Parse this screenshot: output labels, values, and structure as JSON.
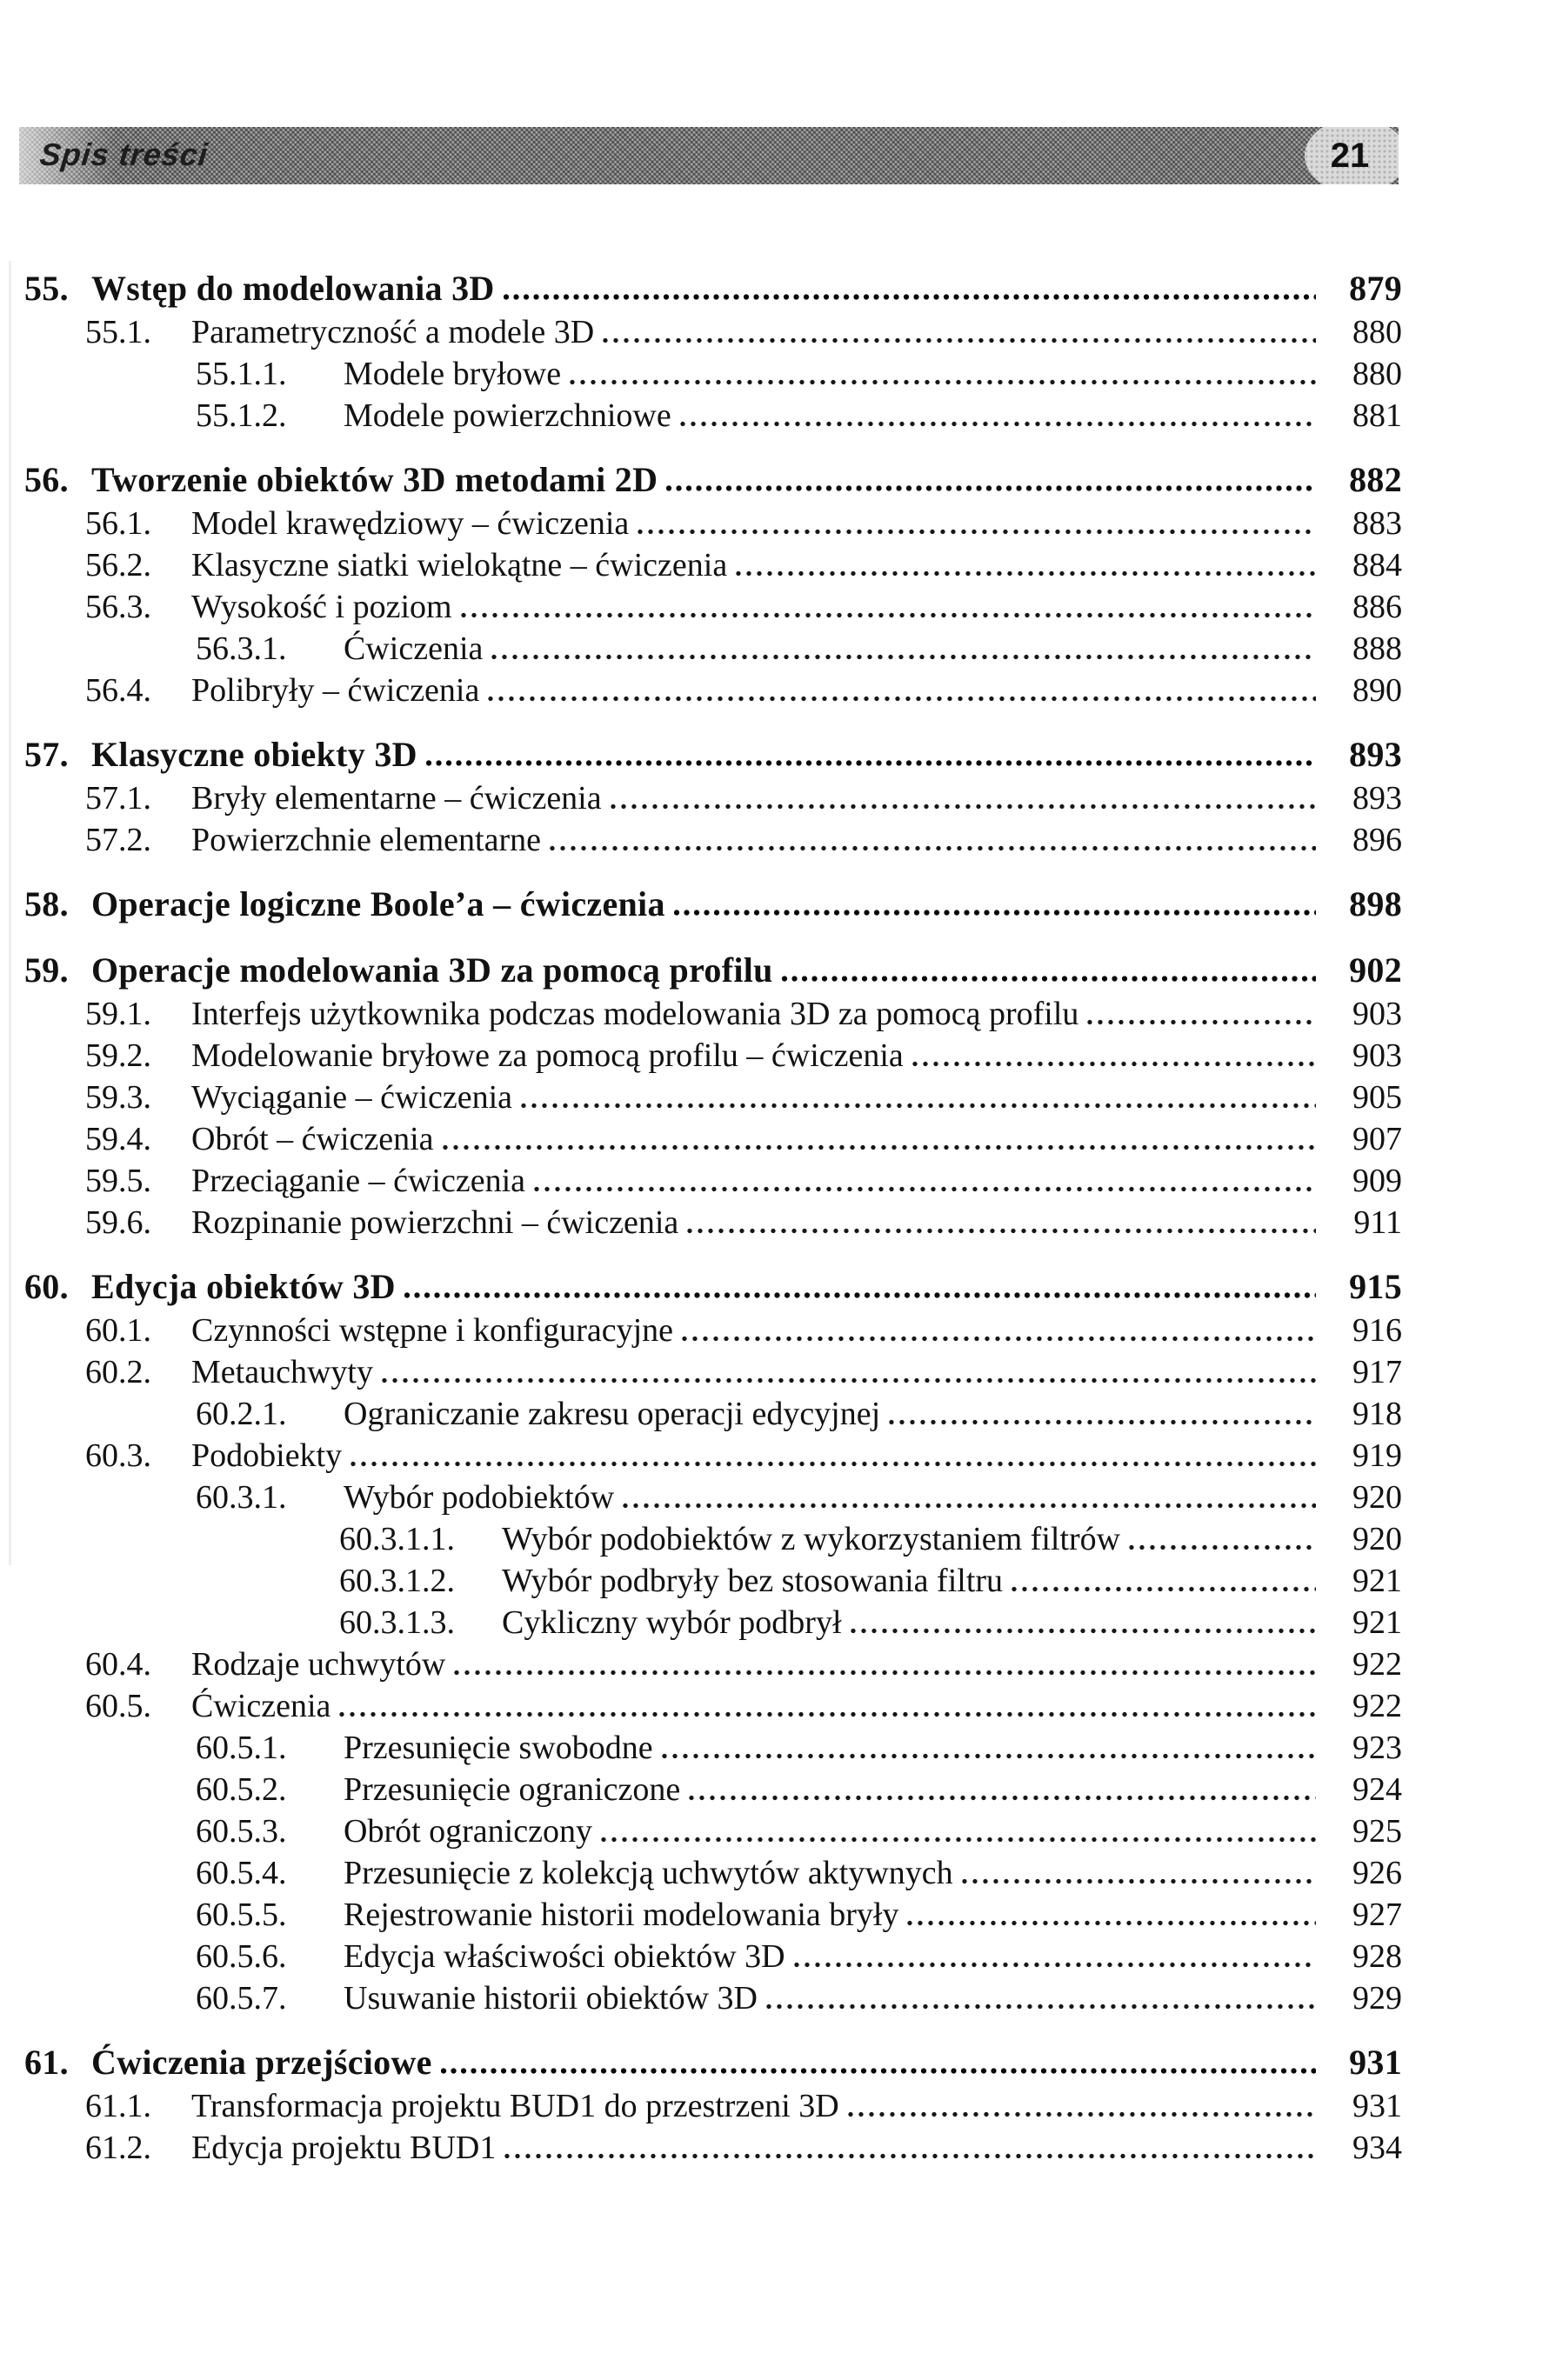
{
  "header": {
    "title": "Spis treści",
    "page_number": "21"
  },
  "toc": {
    "entries": [
      {
        "num": "55.",
        "title": "Wstęp do modelowania 3D",
        "page": "879",
        "level": 1,
        "bold": true
      },
      {
        "num": "55.1.",
        "title": "Parametryczność a modele 3D",
        "page": "880",
        "level": 2,
        "bold": false
      },
      {
        "num": "55.1.1.",
        "title": "Modele bryłowe",
        "page": "880",
        "level": 3,
        "bold": false
      },
      {
        "num": "55.1.2.",
        "title": "Modele powierzchniowe",
        "page": "881",
        "level": 3,
        "bold": false
      },
      {
        "num": "56.",
        "title": "Tworzenie obiektów 3D metodami 2D",
        "page": "882",
        "level": 1,
        "bold": true
      },
      {
        "num": "56.1.",
        "title": "Model krawędziowy – ćwiczenia",
        "page": "883",
        "level": 2,
        "bold": false
      },
      {
        "num": "56.2.",
        "title": "Klasyczne siatki wielokątne – ćwiczenia",
        "page": "884",
        "level": 2,
        "bold": false
      },
      {
        "num": "56.3.",
        "title": "Wysokość i poziom",
        "page": "886",
        "level": 2,
        "bold": false
      },
      {
        "num": "56.3.1.",
        "title": "Ćwiczenia",
        "page": "888",
        "level": 3,
        "bold": false
      },
      {
        "num": "56.4.",
        "title": "Polibryły – ćwiczenia",
        "page": "890",
        "level": 2,
        "bold": false
      },
      {
        "num": "57.",
        "title": "Klasyczne obiekty 3D",
        "page": "893",
        "level": 1,
        "bold": true
      },
      {
        "num": "57.1.",
        "title": "Bryły elementarne – ćwiczenia",
        "page": "893",
        "level": 2,
        "bold": false
      },
      {
        "num": "57.2.",
        "title": "Powierzchnie elementarne",
        "page": "896",
        "level": 2,
        "bold": false
      },
      {
        "num": "58.",
        "title": "Operacje logiczne Boole’a – ćwiczenia",
        "page": "898",
        "level": 1,
        "bold": true
      },
      {
        "num": "59.",
        "title": "Operacje modelowania 3D za pomocą profilu",
        "page": "902",
        "level": 1,
        "bold": true
      },
      {
        "num": "59.1.",
        "title": "Interfejs użytkownika podczas modelowania 3D za pomocą profilu",
        "page": "903",
        "level": 2,
        "bold": false
      },
      {
        "num": "59.2.",
        "title": "Modelowanie bryłowe za pomocą profilu – ćwiczenia",
        "page": "903",
        "level": 2,
        "bold": false
      },
      {
        "num": "59.3.",
        "title": "Wyciąganie – ćwiczenia",
        "page": "905",
        "level": 2,
        "bold": false
      },
      {
        "num": "59.4.",
        "title": "Obrót – ćwiczenia",
        "page": "907",
        "level": 2,
        "bold": false
      },
      {
        "num": "59.5.",
        "title": "Przeciąganie – ćwiczenia",
        "page": "909",
        "level": 2,
        "bold": false
      },
      {
        "num": "59.6.",
        "title": "Rozpinanie powierzchni – ćwiczenia",
        "page": "911",
        "level": 2,
        "bold": false
      },
      {
        "num": "60.",
        "title": "Edycja obiektów 3D",
        "page": "915",
        "level": 1,
        "bold": true
      },
      {
        "num": "60.1.",
        "title": "Czynności wstępne i konfiguracyjne",
        "page": "916",
        "level": 2,
        "bold": false
      },
      {
        "num": "60.2.",
        "title": "Metauchwyty",
        "page": "917",
        "level": 2,
        "bold": false
      },
      {
        "num": "60.2.1.",
        "title": "Ograniczanie zakresu operacji edycyjnej",
        "page": "918",
        "level": 3,
        "bold": false
      },
      {
        "num": "60.3.",
        "title": "Podobiekty",
        "page": "919",
        "level": 2,
        "bold": false
      },
      {
        "num": "60.3.1.",
        "title": "Wybór podobiektów",
        "page": "920",
        "level": 3,
        "bold": false
      },
      {
        "num": "60.3.1.1.",
        "title": "Wybór podobiektów z wykorzystaniem filtrów",
        "page": "920",
        "level": 4,
        "bold": false
      },
      {
        "num": "60.3.1.2.",
        "title": "Wybór podbryły bez stosowania filtru",
        "page": "921",
        "level": 4,
        "bold": false
      },
      {
        "num": "60.3.1.3.",
        "title": "Cykliczny wybór podbrył",
        "page": "921",
        "level": 4,
        "bold": false
      },
      {
        "num": "60.4.",
        "title": "Rodzaje uchwytów",
        "page": "922",
        "level": 2,
        "bold": false
      },
      {
        "num": "60.5.",
        "title": "Ćwiczenia",
        "page": "922",
        "level": 2,
        "bold": false
      },
      {
        "num": "60.5.1.",
        "title": "Przesunięcie swobodne",
        "page": "923",
        "level": 3,
        "bold": false
      },
      {
        "num": "60.5.2.",
        "title": "Przesunięcie ograniczone",
        "page": "924",
        "level": 3,
        "bold": false
      },
      {
        "num": "60.5.3.",
        "title": "Obrót ograniczony",
        "page": "925",
        "level": 3,
        "bold": false
      },
      {
        "num": "60.5.4.",
        "title": "Przesunięcie z kolekcją uchwytów aktywnych",
        "page": "926",
        "level": 3,
        "bold": false
      },
      {
        "num": "60.5.5.",
        "title": "Rejestrowanie historii modelowania bryły",
        "page": "927",
        "level": 3,
        "bold": false
      },
      {
        "num": "60.5.6.",
        "title": "Edycja właściwości obiektów 3D",
        "page": "928",
        "level": 3,
        "bold": false
      },
      {
        "num": "60.5.7.",
        "title": "Usuwanie historii obiektów 3D",
        "page": "929",
        "level": 3,
        "bold": false
      },
      {
        "num": "61.",
        "title": "Ćwiczenia przejściowe",
        "page": "931",
        "level": 1,
        "bold": true
      },
      {
        "num": "61.1.",
        "title": "Transformacja projektu BUD1 do przestrzeni 3D",
        "page": "931",
        "level": 2,
        "bold": false
      },
      {
        "num": "61.2.",
        "title": "Edycja projektu BUD1",
        "page": "934",
        "level": 2,
        "bold": false
      }
    ]
  }
}
